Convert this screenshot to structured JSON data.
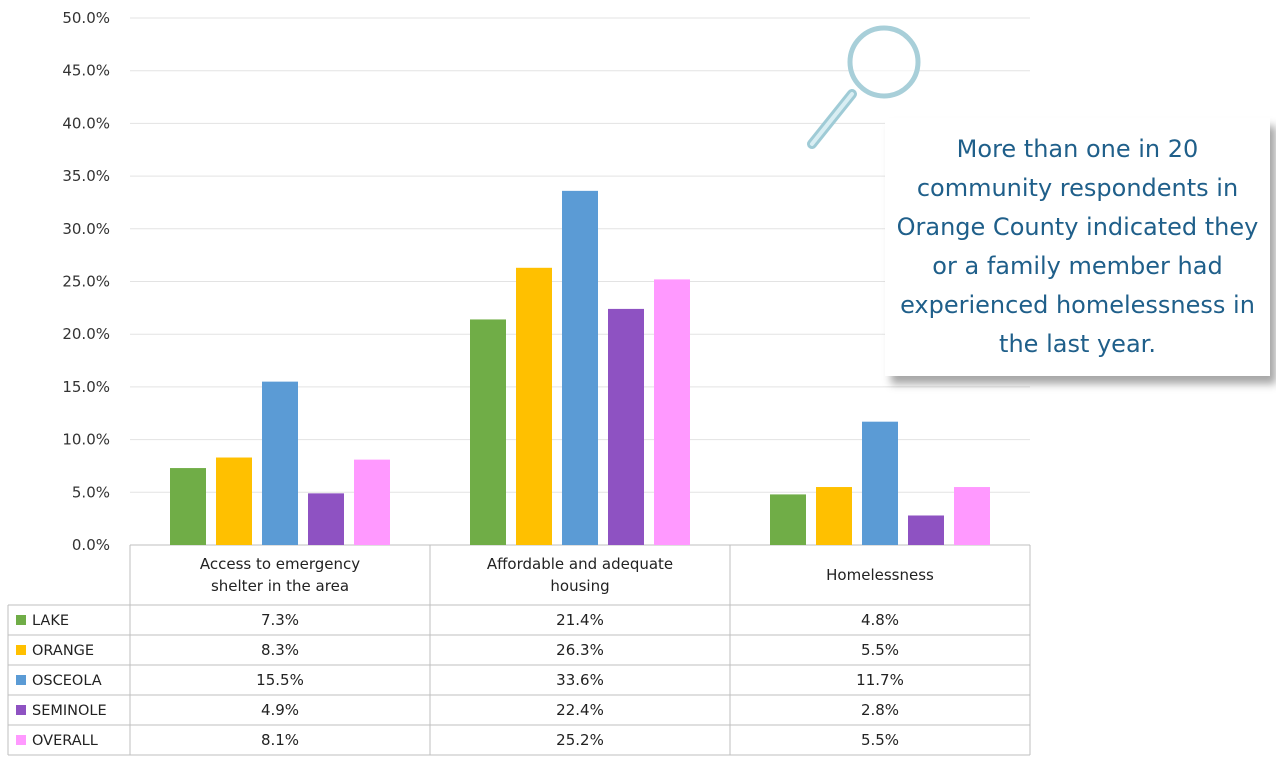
{
  "chart_data": {
    "type": "bar",
    "categories": [
      [
        "Access to emergency",
        "shelter in the area"
      ],
      [
        "Affordable and adequate",
        "housing"
      ],
      [
        "Homelessness"
      ]
    ],
    "series": [
      {
        "name": "LAKE",
        "color": "#70ad47",
        "values": [
          7.3,
          21.4,
          4.8
        ],
        "labels": [
          "7.3%",
          "21.4%",
          "4.8%"
        ]
      },
      {
        "name": "ORANGE",
        "color": "#ffc000",
        "values": [
          8.3,
          26.3,
          5.5
        ],
        "labels": [
          "8.3%",
          "26.3%",
          "5.5%"
        ]
      },
      {
        "name": "OSCEOLA",
        "color": "#5b9bd5",
        "values": [
          15.5,
          33.6,
          11.7
        ],
        "labels": [
          "15.5%",
          "33.6%",
          "11.7%"
        ]
      },
      {
        "name": "SEMINOLE",
        "color": "#8e52c2",
        "values": [
          4.9,
          22.4,
          2.8
        ],
        "labels": [
          "4.9%",
          "22.4%",
          "2.8%"
        ]
      },
      {
        "name": "OVERALL",
        "color": "#ff99ff",
        "values": [
          8.1,
          25.2,
          5.5
        ],
        "labels": [
          "8.1%",
          "25.2%",
          "5.5%"
        ]
      }
    ],
    "ylim": [
      0,
      50
    ],
    "yticks": [
      "0.0%",
      "5.0%",
      "10.0%",
      "15.0%",
      "20.0%",
      "25.0%",
      "30.0%",
      "35.0%",
      "40.0%",
      "45.0%",
      "50.0%"
    ],
    "grid": true,
    "legend": "data-table"
  },
  "callout": {
    "text": "More than one in 20 community respondents in Orange County indicated they or a family member had experienced homelessness in the last year.",
    "color": "#1f5f8a",
    "icon": "magnifying-glass-icon"
  }
}
